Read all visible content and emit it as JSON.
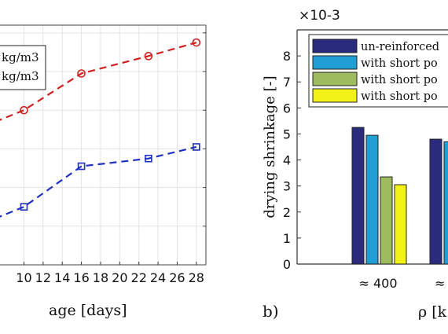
{
  "chart_data": [
    {
      "type": "line",
      "xlabel": "age [days]",
      "x_ticks": [
        10,
        12,
        14,
        16,
        18,
        20,
        22,
        24,
        26,
        28
      ],
      "xlim": [
        7.5,
        29
      ],
      "grid": true,
      "legend_labels": [
        "kg/m3",
        "kg/m3"
      ],
      "series": [
        {
          "color": "#d02020",
          "marker": "circle",
          "line": "dashed",
          "x": [
            7,
            10,
            16,
            23,
            28
          ],
          "y": [
            3.7,
            4.0,
            4.95,
            5.4,
            5.75
          ]
        },
        {
          "color": "#2030c0",
          "marker": "square",
          "line": "dashed",
          "x": [
            7,
            10,
            16,
            23,
            28
          ],
          "y": [
            1.2,
            1.5,
            2.55,
            2.75,
            3.05
          ]
        }
      ]
    },
    {
      "type": "bar",
      "panel_label": "b)",
      "ylabel": "drying shrinkage [-]",
      "y_multiplier": "×10-3",
      "y_ticks": [
        0,
        1,
        2,
        3,
        4,
        5,
        6,
        7,
        8
      ],
      "ylim": [
        0,
        9
      ],
      "grid": false,
      "legend_position": "top",
      "categories": [
        "≈ 400",
        "≈"
      ],
      "xlabel": "ρ [k",
      "series": [
        {
          "name": "un-reinforced",
          "color": "#2b2b7e",
          "values": [
            5.25,
            4.8
          ]
        },
        {
          "name": "with short po",
          "color": "#1f9fd4",
          "values": [
            4.95,
            4.7
          ]
        },
        {
          "name": "with short po",
          "color": "#9fbb5f",
          "values": [
            3.35,
            null
          ]
        },
        {
          "name": "with short po",
          "color": "#f2f218",
          "values": [
            3.05,
            null
          ]
        }
      ]
    }
  ]
}
